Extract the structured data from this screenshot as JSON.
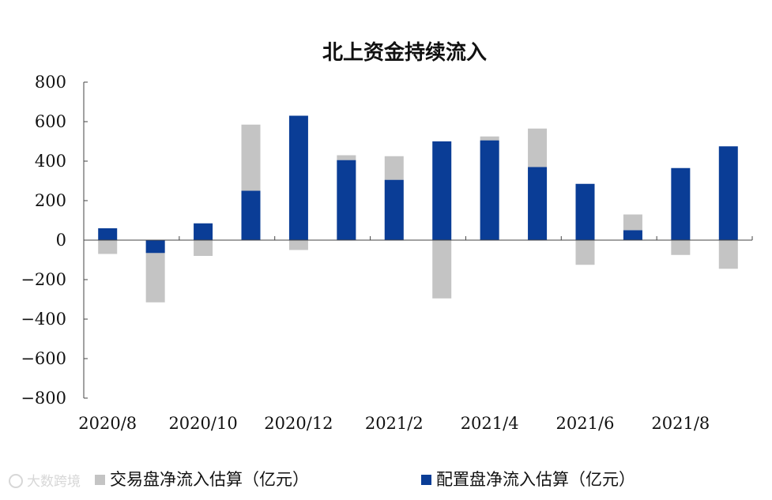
{
  "chart_data": {
    "type": "bar",
    "title": "北上资金持续流入",
    "xlabel": "",
    "ylabel": "",
    "ylim": [
      -800,
      800
    ],
    "yticks": [
      "800",
      "600",
      "400",
      "200",
      "0",
      "−200",
      "−400",
      "−600",
      "−800"
    ],
    "ytick_values": [
      800,
      600,
      400,
      200,
      0,
      -200,
      -400,
      -600,
      -800
    ],
    "x_tick_labels": [
      "2020/8",
      "2020/10",
      "2020/12",
      "2021/2",
      "2021/4",
      "2021/6",
      "2021/8"
    ],
    "x_tick_label_category_index": [
      0,
      2,
      4,
      6,
      8,
      10,
      12
    ],
    "categories": [
      "2020/8",
      "2020/9",
      "2020/10",
      "2020/11",
      "2020/12",
      "2021/1",
      "2021/2",
      "2021/3",
      "2021/4",
      "2021/5",
      "2021/6",
      "2021/7",
      "2021/8",
      "2021/9"
    ],
    "series": [
      {
        "name": "交易盘净流入估算（亿元）",
        "color": "#c4c4c4",
        "values": [
          -70,
          -315,
          -80,
          585,
          -50,
          430,
          425,
          -295,
          525,
          565,
          -125,
          130,
          -75,
          -145
        ]
      },
      {
        "name": "配置盘净流入估算（亿元）",
        "color": "#0a3d96",
        "values": [
          60,
          -65,
          85,
          250,
          630,
          405,
          305,
          500,
          505,
          370,
          285,
          50,
          365,
          475
        ]
      }
    ],
    "grid": false,
    "legend": "bottom"
  },
  "watermark": "大数跨境"
}
